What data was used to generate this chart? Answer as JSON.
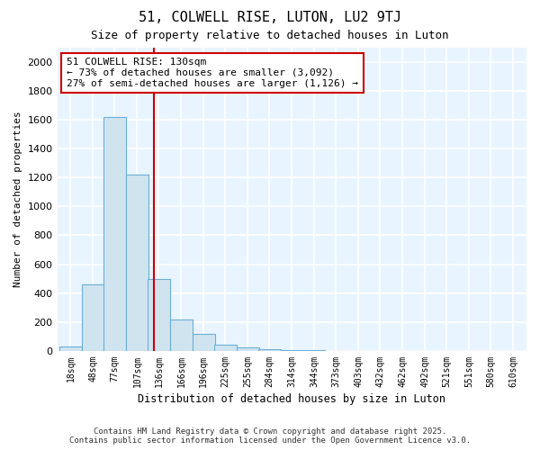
{
  "title1": "51, COLWELL RISE, LUTON, LU2 9TJ",
  "title2": "Size of property relative to detached houses in Luton",
  "xlabel": "Distribution of detached houses by size in Luton",
  "ylabel": "Number of detached properties",
  "bins": [
    18,
    48,
    77,
    107,
    136,
    166,
    196,
    225,
    255,
    284,
    314,
    344,
    373,
    403,
    432,
    462,
    492,
    521,
    551,
    580,
    610
  ],
  "counts": [
    30,
    460,
    1620,
    1220,
    500,
    220,
    120,
    45,
    25,
    15,
    5,
    5,
    0,
    0,
    0,
    0,
    0,
    0,
    0,
    0,
    0
  ],
  "bar_color": "#d0e4f0",
  "bar_edge_color": "#6baed6",
  "red_line_x": 130,
  "annotation_text": "51 COLWELL RISE: 130sqm\n← 73% of detached houses are smaller (3,092)\n27% of semi-detached houses are larger (1,126) →",
  "annotation_box_color": "#ffffff",
  "annotation_box_edge": "#cc0000",
  "ylim": [
    0,
    2100
  ],
  "yticks": [
    0,
    200,
    400,
    600,
    800,
    1000,
    1200,
    1400,
    1600,
    1800,
    2000
  ],
  "bg_color": "#ddeeff",
  "plot_bg_color": "#e8f4ff",
  "grid_color": "#ffffff",
  "fig_bg_color": "#ffffff",
  "footnote1": "Contains HM Land Registry data © Crown copyright and database right 2025.",
  "footnote2": "Contains public sector information licensed under the Open Government Licence v3.0."
}
